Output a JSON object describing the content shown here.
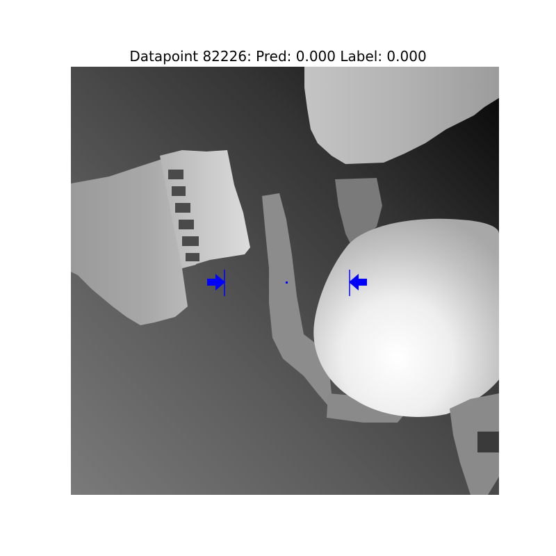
{
  "figure": {
    "title": "Datapoint 82226: Pred: 0.000 Label: 0.000"
  },
  "colors": {
    "marker": "#0000ff",
    "background": "#ffffff"
  }
}
